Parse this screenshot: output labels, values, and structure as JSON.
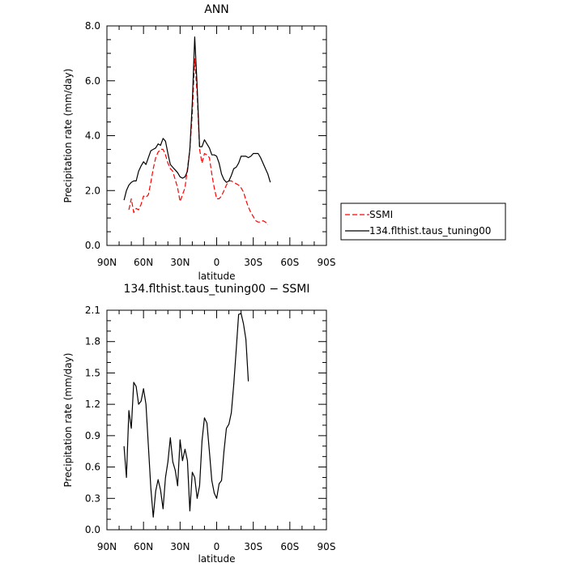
{
  "chart_data": [
    {
      "type": "line",
      "title": "ANN",
      "xlabel": "latitude",
      "ylabel": "Precipitation rate (mm/day)",
      "xlim": [
        90,
        -90
      ],
      "ylim": [
        0,
        8
      ],
      "x_ticks": [
        {
          "value": 90,
          "label": "90N"
        },
        {
          "value": 60,
          "label": "60N"
        },
        {
          "value": 30,
          "label": "30N"
        },
        {
          "value": 0,
          "label": "0"
        },
        {
          "value": -30,
          "label": "30S"
        },
        {
          "value": -60,
          "label": "60S"
        },
        {
          "value": -90,
          "label": "90S"
        }
      ],
      "y_ticks": [
        {
          "value": 0,
          "label": "0.0"
        },
        {
          "value": 2,
          "label": "2.0"
        },
        {
          "value": 4,
          "label": "4.0"
        },
        {
          "value": 6,
          "label": "6.0"
        },
        {
          "value": 8,
          "label": "8.0"
        }
      ],
      "legend": "right",
      "series": [
        {
          "name": "SSMI",
          "color": "#ff0000",
          "dash": "dashed",
          "points": [
            [
              72,
              1.3
            ],
            [
              70,
              1.7
            ],
            [
              68,
              1.2
            ],
            [
              66,
              1.35
            ],
            [
              64,
              1.3
            ],
            [
              62,
              1.5
            ],
            [
              60,
              1.8
            ],
            [
              58,
              1.75
            ],
            [
              56,
              1.85
            ],
            [
              54,
              2.3
            ],
            [
              52,
              2.8
            ],
            [
              50,
              3.2
            ],
            [
              48,
              3.4
            ],
            [
              46,
              3.5
            ],
            [
              44,
              3.5
            ],
            [
              42,
              3.3
            ],
            [
              40,
              3.0
            ],
            [
              38,
              2.8
            ],
            [
              36,
              2.7
            ],
            [
              34,
              2.4
            ],
            [
              32,
              2.1
            ],
            [
              30,
              1.6
            ],
            [
              28,
              1.85
            ],
            [
              26,
              2.1
            ],
            [
              24,
              2.8
            ],
            [
              22,
              3.5
            ],
            [
              20,
              4.8
            ],
            [
              18,
              6.8
            ],
            [
              16,
              5.5
            ],
            [
              14,
              3.5
            ],
            [
              12,
              3.0
            ],
            [
              10,
              3.35
            ],
            [
              8,
              3.3
            ],
            [
              6,
              3.2
            ],
            [
              4,
              2.6
            ],
            [
              2,
              2.1
            ],
            [
              0,
              1.7
            ],
            [
              -2,
              1.7
            ],
            [
              -4,
              1.8
            ],
            [
              -6,
              2.0
            ],
            [
              -8,
              2.2
            ],
            [
              -10,
              2.35
            ],
            [
              -12,
              2.35
            ],
            [
              -14,
              2.3
            ],
            [
              -16,
              2.25
            ],
            [
              -18,
              2.2
            ],
            [
              -20,
              2.1
            ],
            [
              -22,
              1.95
            ],
            [
              -24,
              1.65
            ],
            [
              -26,
              1.4
            ],
            [
              -28,
              1.2
            ],
            [
              -30,
              1.05
            ],
            [
              -32,
              0.9
            ],
            [
              -34,
              0.85
            ],
            [
              -36,
              0.85
            ],
            [
              -38,
              0.9
            ],
            [
              -40,
              0.85
            ],
            [
              -42,
              0.75
            ]
          ]
        },
        {
          "name": "134.flthist.taus_tuning00",
          "color": "#000000",
          "dash": "solid",
          "points": [
            [
              76,
              1.65
            ],
            [
              74,
              2.0
            ],
            [
              72,
              2.2
            ],
            [
              70,
              2.3
            ],
            [
              68,
              2.35
            ],
            [
              66,
              2.35
            ],
            [
              64,
              2.7
            ],
            [
              62,
              2.9
            ],
            [
              60,
              3.05
            ],
            [
              58,
              2.95
            ],
            [
              56,
              3.2
            ],
            [
              54,
              3.45
            ],
            [
              52,
              3.5
            ],
            [
              50,
              3.55
            ],
            [
              48,
              3.7
            ],
            [
              46,
              3.65
            ],
            [
              44,
              3.9
            ],
            [
              42,
              3.8
            ],
            [
              40,
              3.35
            ],
            [
              38,
              2.95
            ],
            [
              36,
              2.85
            ],
            [
              34,
              2.75
            ],
            [
              32,
              2.65
            ],
            [
              30,
              2.5
            ],
            [
              28,
              2.45
            ],
            [
              26,
              2.5
            ],
            [
              24,
              2.7
            ],
            [
              22,
              3.5
            ],
            [
              20,
              5.2
            ],
            [
              18,
              7.6
            ],
            [
              16,
              5.8
            ],
            [
              14,
              3.6
            ],
            [
              12,
              3.6
            ],
            [
              10,
              3.85
            ],
            [
              8,
              3.7
            ],
            [
              6,
              3.55
            ],
            [
              4,
              3.3
            ],
            [
              2,
              3.3
            ],
            [
              0,
              3.25
            ],
            [
              -2,
              3.0
            ],
            [
              -4,
              2.6
            ],
            [
              -6,
              2.4
            ],
            [
              -8,
              2.3
            ],
            [
              -10,
              2.35
            ],
            [
              -12,
              2.55
            ],
            [
              -14,
              2.8
            ],
            [
              -16,
              2.85
            ],
            [
              -18,
              3.0
            ],
            [
              -20,
              3.25
            ],
            [
              -22,
              3.25
            ],
            [
              -24,
              3.25
            ],
            [
              -26,
              3.2
            ],
            [
              -28,
              3.25
            ],
            [
              -30,
              3.35
            ],
            [
              -32,
              3.35
            ],
            [
              -34,
              3.35
            ],
            [
              -36,
              3.2
            ],
            [
              -38,
              3.0
            ],
            [
              -40,
              2.8
            ],
            [
              -42,
              2.6
            ],
            [
              -44,
              2.3
            ]
          ]
        }
      ]
    },
    {
      "type": "line",
      "title": "134.flthist.taus_tuning00 − SSMI",
      "xlabel": "latitude",
      "ylabel": "Precipitation rate (mm/day)",
      "xlim": [
        90,
        -90
      ],
      "ylim": [
        0,
        2.1
      ],
      "x_ticks": [
        {
          "value": 90,
          "label": "90N"
        },
        {
          "value": 60,
          "label": "60N"
        },
        {
          "value": 30,
          "label": "30N"
        },
        {
          "value": 0,
          "label": "0"
        },
        {
          "value": -30,
          "label": "30S"
        },
        {
          "value": -60,
          "label": "60S"
        },
        {
          "value": -90,
          "label": "90S"
        }
      ],
      "y_ticks": [
        {
          "value": 0,
          "label": "0.0"
        },
        {
          "value": 0.3,
          "label": "0.3"
        },
        {
          "value": 0.6,
          "label": "0.6"
        },
        {
          "value": 0.9,
          "label": "0.9"
        },
        {
          "value": 1.2,
          "label": "1.2"
        },
        {
          "value": 1.5,
          "label": "1.5"
        },
        {
          "value": 1.8,
          "label": "1.8"
        },
        {
          "value": 2.1,
          "label": "2.1"
        }
      ],
      "series": [
        {
          "color": "#000000",
          "dash": "solid",
          "points": [
            [
              76,
              0.8
            ],
            [
              74,
              0.5
            ],
            [
              72,
              1.14
            ],
            [
              70,
              0.97
            ],
            [
              68,
              1.41
            ],
            [
              66,
              1.37
            ],
            [
              64,
              1.2
            ],
            [
              62,
              1.23
            ],
            [
              60,
              1.35
            ],
            [
              58,
              1.2
            ],
            [
              56,
              0.8
            ],
            [
              54,
              0.4
            ],
            [
              52,
              0.12
            ],
            [
              50,
              0.37
            ],
            [
              48,
              0.48
            ],
            [
              46,
              0.38
            ],
            [
              44,
              0.2
            ],
            [
              42,
              0.5
            ],
            [
              40,
              0.65
            ],
            [
              38,
              0.88
            ],
            [
              36,
              0.65
            ],
            [
              34,
              0.57
            ],
            [
              32,
              0.42
            ],
            [
              30,
              0.86
            ],
            [
              28,
              0.66
            ],
            [
              26,
              0.77
            ],
            [
              24,
              0.66
            ],
            [
              22,
              0.18
            ],
            [
              20,
              0.55
            ],
            [
              18,
              0.5
            ],
            [
              16,
              0.3
            ],
            [
              14,
              0.42
            ],
            [
              12,
              0.85
            ],
            [
              10,
              1.07
            ],
            [
              8,
              1.02
            ],
            [
              6,
              0.75
            ],
            [
              4,
              0.47
            ],
            [
              2,
              0.35
            ],
            [
              0,
              0.3
            ],
            [
              -2,
              0.44
            ],
            [
              -4,
              0.47
            ],
            [
              -6,
              0.75
            ],
            [
              -8,
              0.97
            ],
            [
              -10,
              1.01
            ],
            [
              -12,
              1.12
            ],
            [
              -14,
              1.39
            ],
            [
              -16,
              1.72
            ],
            [
              -18,
              2.06
            ],
            [
              -20,
              2.07
            ],
            [
              -22,
              1.97
            ],
            [
              -24,
              1.82
            ],
            [
              -26,
              1.42
            ]
          ]
        }
      ]
    }
  ]
}
